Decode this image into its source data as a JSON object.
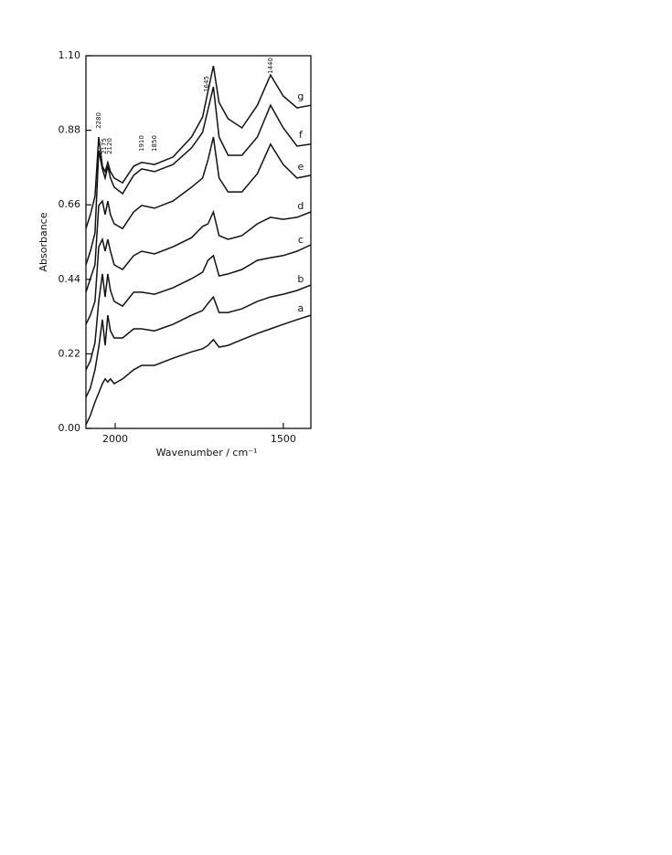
{
  "chart_data": {
    "type": "line",
    "xlabel": "Wavenumber / cm⁻¹",
    "ylabel": "Absorbance",
    "xlim": [
      2087,
      1418
    ],
    "ylim": [
      0,
      1.1
    ],
    "xticks": [
      2000,
      1500
    ],
    "yticks": [
      {
        "value": 0,
        "label": "0.00"
      },
      0.22,
      0.44,
      0.66,
      0.88,
      {
        "value": 1.1,
        "label": "1.10"
      }
    ],
    "annotations": [
      "2280",
      "2175",
      "2120",
      "1910",
      "1850",
      "1645",
      "1440"
    ],
    "x": [
      2087,
      2074,
      2060,
      2049,
      2038,
      2030,
      2022,
      2014,
      2003,
      1978,
      1945,
      1921,
      1883,
      1828,
      1773,
      1740,
      1724,
      1708,
      1691,
      1664,
      1623,
      1577,
      1538,
      1500,
      1459,
      1418
    ],
    "series": [
      {
        "name": "a",
        "color": "#111111",
        "values": [
          0.011,
          0.038,
          0.078,
          0.105,
          0.132,
          0.146,
          0.137,
          0.146,
          0.132,
          0.146,
          0.173,
          0.186,
          0.186,
          0.207,
          0.226,
          0.235,
          0.245,
          0.262,
          0.24,
          0.245,
          0.262,
          0.28,
          0.294,
          0.307,
          0.321,
          0.334
        ]
      },
      {
        "name": "b",
        "color": "#111111",
        "values": [
          0.092,
          0.119,
          0.173,
          0.24,
          0.321,
          0.245,
          0.334,
          0.288,
          0.267,
          0.267,
          0.294,
          0.294,
          0.288,
          0.307,
          0.334,
          0.348,
          0.369,
          0.388,
          0.342,
          0.342,
          0.353,
          0.375,
          0.388,
          0.396,
          0.407,
          0.423
        ]
      },
      {
        "name": "c",
        "color": "#111111",
        "values": [
          0.173,
          0.199,
          0.253,
          0.375,
          0.456,
          0.388,
          0.456,
          0.407,
          0.375,
          0.361,
          0.402,
          0.402,
          0.396,
          0.415,
          0.442,
          0.461,
          0.496,
          0.51,
          0.45,
          0.456,
          0.469,
          0.496,
          0.504,
          0.51,
          0.523,
          0.542
        ]
      },
      {
        "name": "d",
        "color": "#111111",
        "values": [
          0.307,
          0.334,
          0.375,
          0.536,
          0.558,
          0.523,
          0.558,
          0.523,
          0.483,
          0.469,
          0.51,
          0.523,
          0.515,
          0.536,
          0.563,
          0.596,
          0.604,
          0.639,
          0.569,
          0.558,
          0.569,
          0.604,
          0.623,
          0.617,
          0.623,
          0.639
        ]
      },
      {
        "name": "e",
        "color": "#111111",
        "values": [
          0.402,
          0.442,
          0.483,
          0.658,
          0.671,
          0.631,
          0.671,
          0.631,
          0.604,
          0.59,
          0.639,
          0.658,
          0.65,
          0.671,
          0.712,
          0.739,
          0.793,
          0.86,
          0.739,
          0.698,
          0.698,
          0.752,
          0.839,
          0.779,
          0.739,
          0.747
        ]
      },
      {
        "name": "f",
        "color": "#111111",
        "values": [
          0.483,
          0.523,
          0.577,
          0.82,
          0.766,
          0.739,
          0.774,
          0.739,
          0.712,
          0.693,
          0.747,
          0.766,
          0.758,
          0.779,
          0.828,
          0.874,
          0.941,
          1.008,
          0.86,
          0.806,
          0.806,
          0.86,
          0.954,
          0.887,
          0.833,
          0.839
        ]
      },
      {
        "name": "g",
        "color": "#111111",
        "values": [
          0.59,
          0.631,
          0.685,
          0.86,
          0.774,
          0.758,
          0.785,
          0.758,
          0.739,
          0.725,
          0.774,
          0.785,
          0.779,
          0.801,
          0.86,
          0.919,
          0.995,
          1.07,
          0.962,
          0.914,
          0.887,
          0.954,
          1.043,
          0.981,
          0.946,
          0.954
        ]
      }
    ]
  }
}
